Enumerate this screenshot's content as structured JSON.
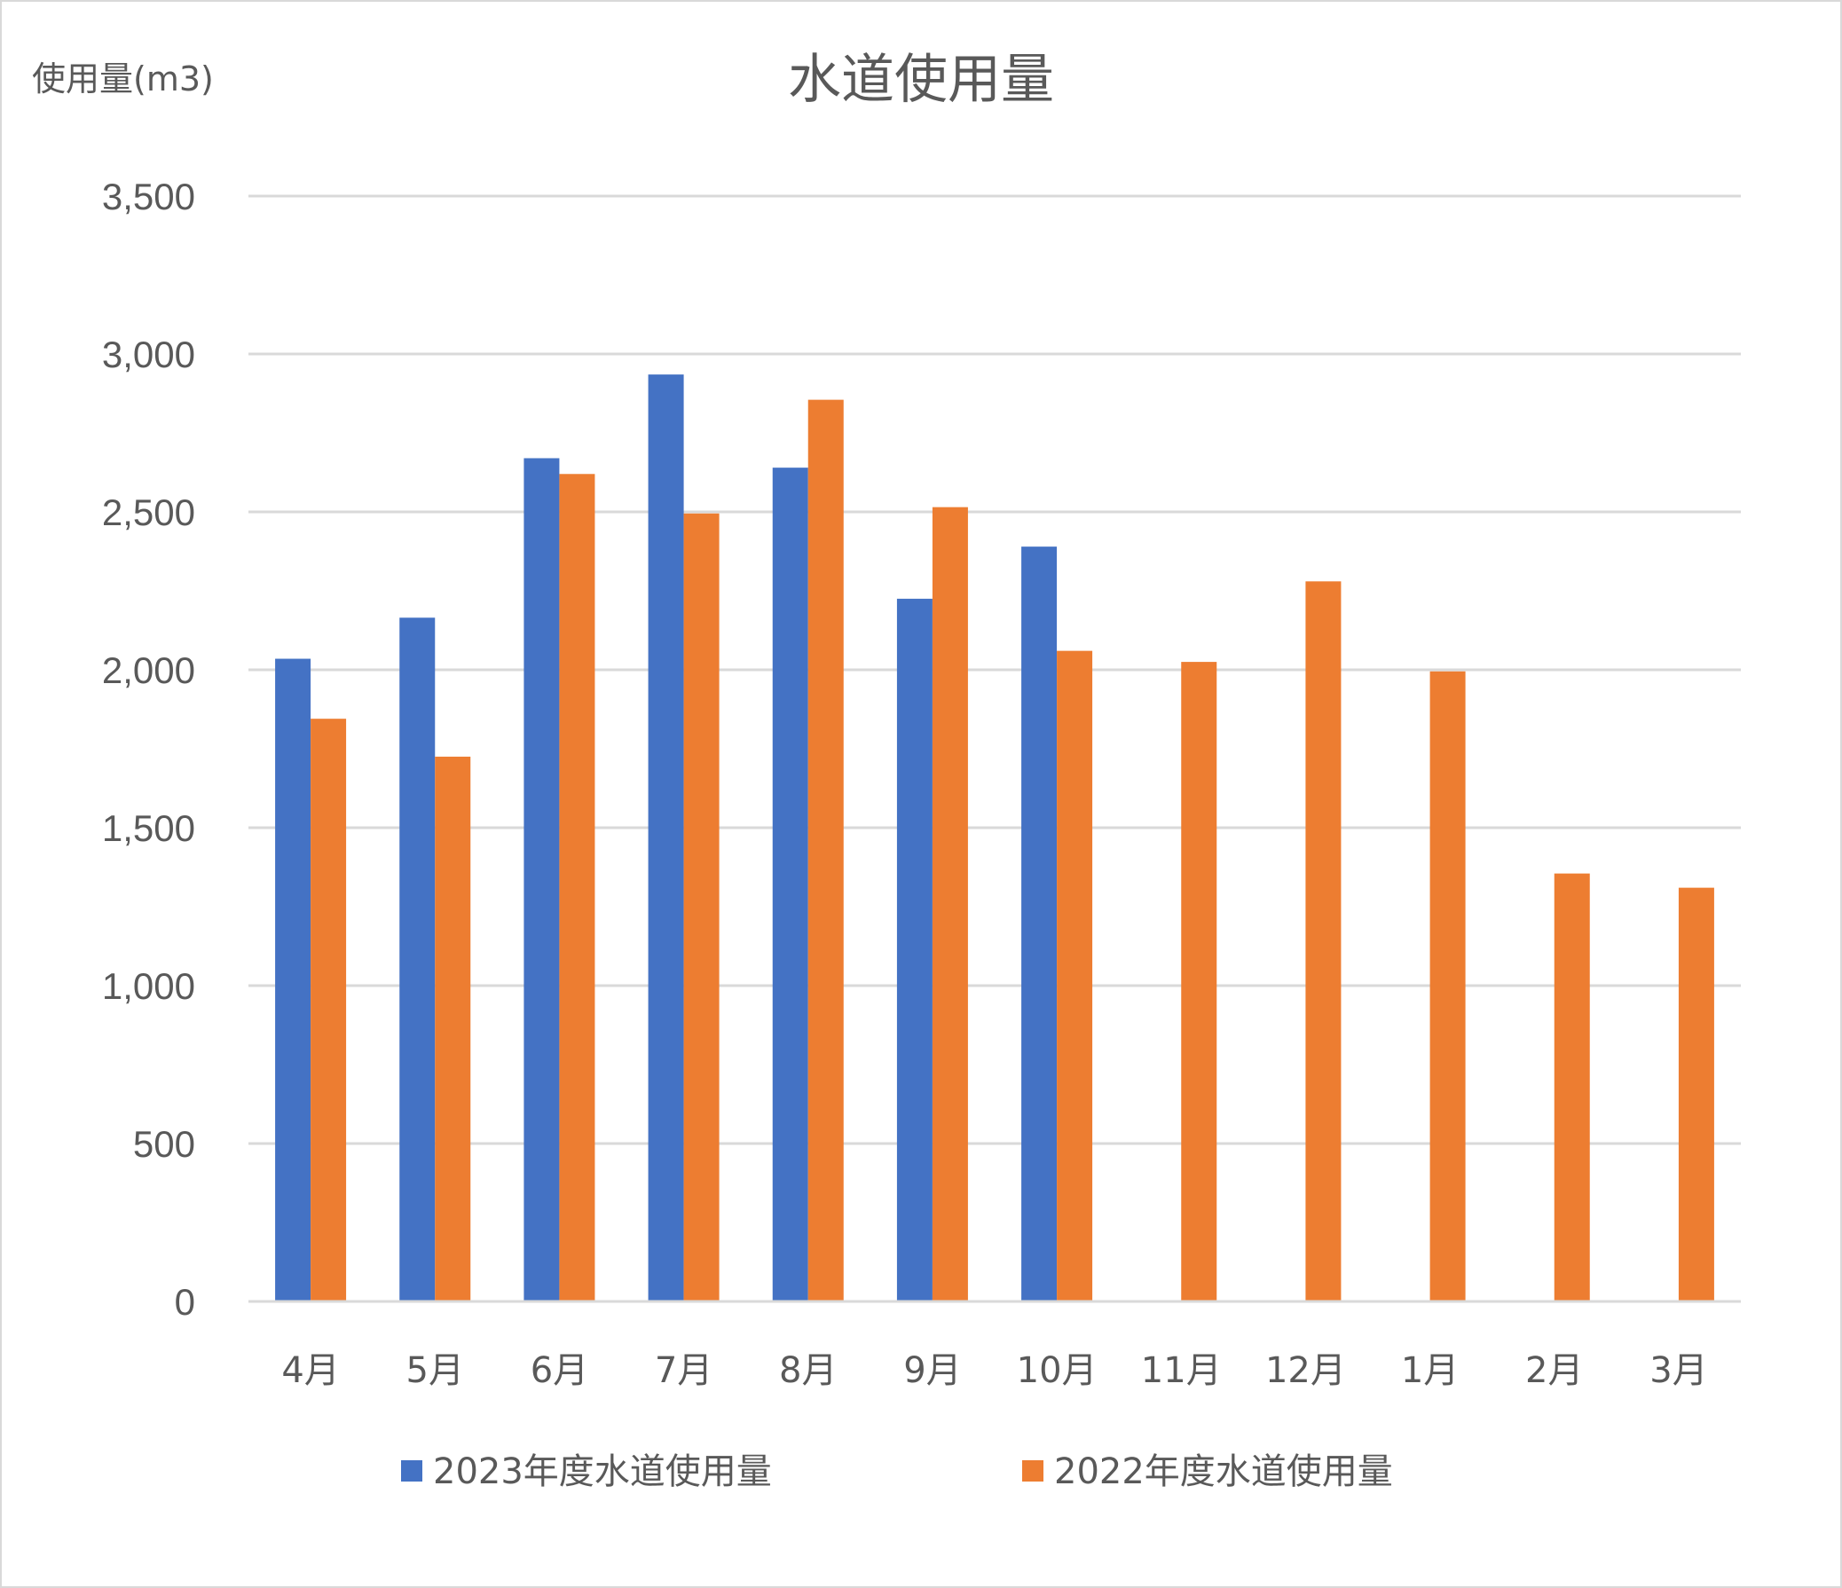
{
  "chart_data": {
    "type": "bar",
    "title": "水道使用量",
    "ylabel": "使用量(m3)",
    "xlabel": "",
    "categories": [
      "4月",
      "5月",
      "6月",
      "7月",
      "8月",
      "9月",
      "10月",
      "11月",
      "12月",
      "1月",
      "2月",
      "3月"
    ],
    "series": [
      {
        "name": "2023年度水道使用量",
        "color": "#4472C4",
        "values": [
          2035,
          2165,
          2670,
          2935,
          2640,
          2225,
          2390,
          null,
          null,
          null,
          null,
          null
        ]
      },
      {
        "name": "2022年度水道使用量",
        "color": "#ED7D31",
        "values": [
          1845,
          1725,
          2620,
          2495,
          2855,
          2515,
          2060,
          2025,
          2280,
          1995,
          1355,
          1310
        ]
      }
    ],
    "ylim": [
      0,
      3500
    ],
    "yticks": [
      0,
      500,
      1000,
      1500,
      2000,
      2500,
      3000,
      3500
    ],
    "ytick_labels": [
      "0",
      "500",
      "1,000",
      "1,500",
      "2,000",
      "2,500",
      "3,000",
      "3,500"
    ],
    "grid": true,
    "legend_position": "bottom"
  }
}
